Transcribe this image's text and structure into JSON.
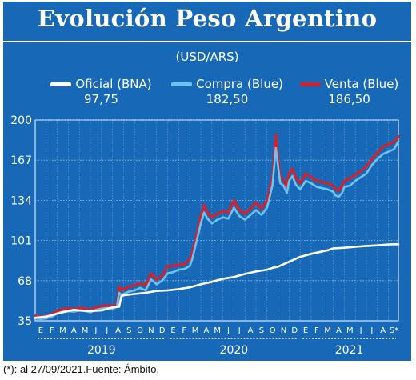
{
  "header": {
    "title": "Evolución Peso Argentino"
  },
  "footnote": "(*): al 27/09/2021.Fuente: Ámbito.",
  "colors": {
    "background": "#1769b8",
    "oficial": "#ffffff",
    "compra": "#6ec3ee",
    "venta": "#d6202a",
    "grid": "#9dc4e8"
  },
  "chart_data": {
    "type": "line",
    "subtitle": "(USD/ARS)",
    "ylim": [
      35,
      200
    ],
    "y_ticks": [
      35,
      68,
      101,
      134,
      167,
      200
    ],
    "x_months": [
      "E",
      "F",
      "M",
      "A",
      "M",
      "J",
      "J",
      "A",
      "S",
      "O",
      "N",
      "D",
      "E",
      "F",
      "M",
      "A",
      "M",
      "J",
      "J",
      "A",
      "S",
      "O",
      "N",
      "D",
      "E",
      "F",
      "M",
      "A",
      "M",
      "J",
      "J",
      "A",
      "S*"
    ],
    "x_years": [
      {
        "label": "2019",
        "start": 0,
        "end": 12
      },
      {
        "label": "2020",
        "start": 12,
        "end": 24
      },
      {
        "label": "2021",
        "start": 24,
        "end": 32.9
      }
    ],
    "grid": true,
    "x_range": [
      0,
      32.9
    ],
    "series": [
      {
        "name": "Oficial (BNA)",
        "last_value": "97,75",
        "x": [
          0,
          1,
          2,
          3,
          3.5,
          4,
          5,
          6,
          7,
          7.6,
          7.8,
          8,
          9,
          10,
          11,
          12,
          13,
          14,
          15,
          16,
          17,
          18,
          19,
          20,
          21,
          21.5,
          22,
          23,
          24,
          25,
          26,
          26.5,
          27,
          28,
          29,
          30,
          31,
          32,
          32.7,
          32.9
        ],
        "y": [
          37.5,
          38.5,
          41,
          43,
          44,
          43.5,
          43,
          43.5,
          46,
          46.5,
          55,
          56,
          57,
          58,
          59.5,
          60,
          61,
          62.5,
          65,
          67,
          69.5,
          71,
          73.5,
          75.5,
          77,
          78.5,
          79.5,
          83.5,
          87.5,
          90,
          92,
          93,
          94.5,
          95,
          95.8,
          96.5,
          97,
          97.7,
          98,
          97.75
        ]
      },
      {
        "name": "Compra (Blue)",
        "last_value": "182,50",
        "x": [
          0,
          0.5,
          1,
          1.5,
          2,
          2.5,
          3,
          3.5,
          4,
          4.5,
          5,
          5.5,
          6,
          6.5,
          7,
          7.4,
          7.6,
          7.8,
          8,
          8.5,
          9,
          9.5,
          10,
          10.5,
          11,
          11.5,
          12,
          12.5,
          13,
          13.5,
          14,
          14.2,
          14.5,
          15,
          15.3,
          15.6,
          16,
          16.5,
          17,
          17.5,
          18,
          18.5,
          19,
          19.5,
          20,
          20.5,
          21,
          21.2,
          21.5,
          21.8,
          22,
          22.2,
          22.5,
          22.8,
          23,
          23.3,
          23.6,
          24,
          24.5,
          25,
          25.5,
          26,
          26.5,
          27,
          27.2,
          27.5,
          27.8,
          28,
          28.5,
          29,
          29.5,
          30,
          30.5,
          31,
          31.5,
          32,
          32.5,
          32.9
        ],
        "y": [
          37,
          36.5,
          37,
          38.5,
          41,
          42.5,
          43,
          42.5,
          43.5,
          43,
          42,
          44,
          45,
          45.5,
          45,
          46.5,
          58,
          56,
          57,
          59,
          60,
          62,
          60,
          69,
          65,
          68,
          74,
          75,
          77,
          77.5,
          80,
          85,
          96,
          115,
          124,
          119,
          115,
          118,
          120,
          119,
          128,
          121,
          118,
          122,
          126,
          122,
          128,
          135,
          147,
          177,
          162,
          148,
          146,
          140,
          150,
          154,
          147,
          143,
          150,
          148,
          145,
          144,
          143,
          141,
          138,
          137,
          140,
          145,
          146,
          150,
          153,
          156,
          163,
          168,
          172,
          174,
          176,
          182.5
        ]
      },
      {
        "name": "Venta (Blue)",
        "last_value": "186,50",
        "x": [
          0,
          0.5,
          1,
          1.5,
          2,
          2.5,
          3,
          3.5,
          4,
          4.5,
          5,
          5.5,
          6,
          6.5,
          7,
          7.4,
          7.6,
          7.8,
          8,
          8.5,
          9,
          9.5,
          10,
          10.5,
          11,
          11.5,
          12,
          12.5,
          13,
          13.5,
          14,
          14.2,
          14.5,
          15,
          15.3,
          15.6,
          16,
          16.5,
          17,
          17.5,
          18,
          18.5,
          19,
          19.5,
          20,
          20.5,
          21,
          21.2,
          21.5,
          21.8,
          22,
          22.2,
          22.5,
          22.8,
          23,
          23.3,
          23.6,
          24,
          24.5,
          25,
          25.5,
          26,
          26.5,
          27,
          27.2,
          27.5,
          27.8,
          28,
          28.5,
          29,
          29.5,
          30,
          30.5,
          31,
          31.5,
          32,
          32.5,
          32.9
        ],
        "y": [
          39,
          38.5,
          39,
          40.5,
          43,
          44.5,
          45,
          44.5,
          45.5,
          45,
          44,
          46,
          47,
          47.5,
          47,
          48.5,
          63,
          60,
          61,
          63,
          64,
          66,
          64,
          74,
          69,
          72,
          80,
          80,
          81,
          81.5,
          85,
          90,
          101,
          121,
          130,
          124,
          120,
          123,
          125,
          124,
          134,
          126,
          123,
          127,
          132,
          127,
          134,
          141,
          153,
          188,
          168,
          153,
          151,
          145,
          156,
          160,
          152,
          148,
          156,
          153,
          150,
          149,
          148,
          146,
          143,
          142,
          146,
          150,
          152,
          155,
          158,
          162,
          168,
          173,
          178,
          180,
          182,
          186.5
        ]
      }
    ]
  }
}
